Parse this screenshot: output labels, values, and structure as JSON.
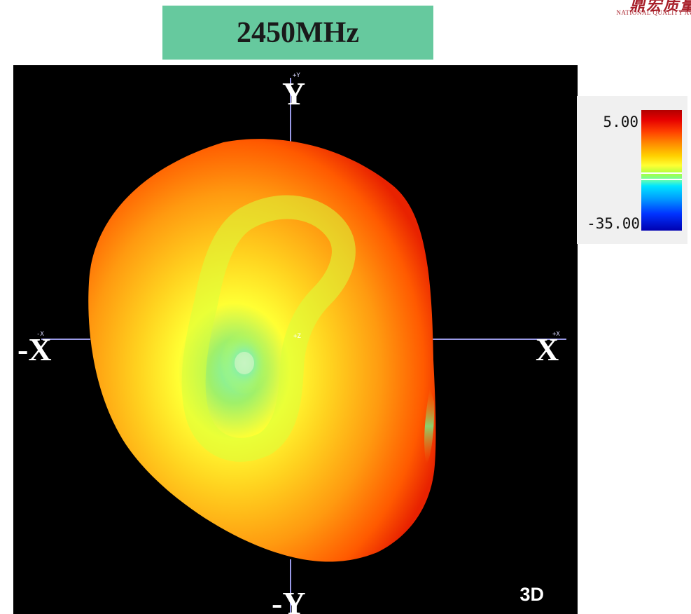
{
  "banner": {
    "frequency_label": "2450MHz",
    "background_color": "#66c99e"
  },
  "logo": {
    "text": "NATIONAL QUALITY AWA",
    "color": "#a8202a"
  },
  "plot": {
    "axes": {
      "pos_y_label": "Y",
      "neg_y_label": "-Y",
      "pos_x_label": "X",
      "neg_x_label": "-X",
      "pos_y_small": "+Y",
      "pos_x_small": "+X",
      "neg_x_small": "-X",
      "z_small": "+Z"
    },
    "view_label": "3D",
    "background_color": "#000000"
  },
  "colorbar": {
    "max_label": "5.00",
    "min_label": "-35.00"
  }
}
